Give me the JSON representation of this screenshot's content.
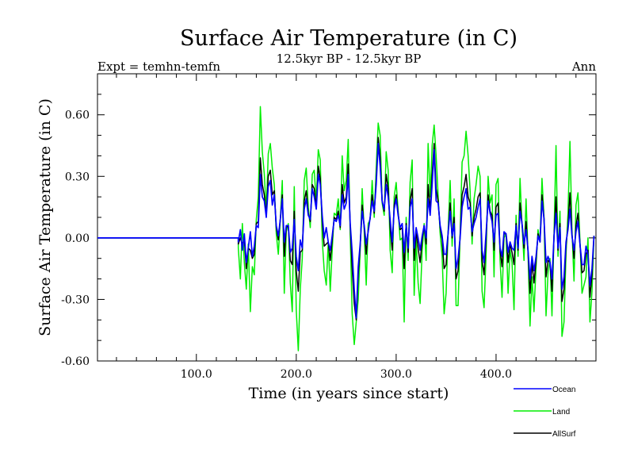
{
  "chart_data": {
    "type": "line",
    "title": "Surface Air Temperature (in C)",
    "subtitle_left": "Expt = temhn-temfn",
    "subtitle_center": "12.5kyr BP - 12.5kyr BP",
    "subtitle_right": "Ann",
    "xlabel": "Time (in years since start)",
    "ylabel": "Surface Air Temperature (in C)",
    "xlim": [
      1,
      500
    ],
    "ylim": [
      -0.6,
      0.8
    ],
    "x_ticks": [
      100,
      200,
      300,
      400
    ],
    "x_tick_labels": [
      "100.0",
      "200.0",
      "300.0",
      "400.0"
    ],
    "y_ticks": [
      -0.6,
      -0.3,
      0.0,
      0.3,
      0.6
    ],
    "y_tick_labels": [
      "-0.60",
      "-0.30",
      "0.00",
      "0.30",
      "0.60"
    ],
    "legend_position": "bottom-right",
    "flat_until": 142,
    "series": [
      {
        "name": "Ocean",
        "color": "#0000ff",
        "x_start": 142,
        "x_step": 2,
        "values": [
          -0.02,
          0.04,
          -0.06,
          0.02,
          -0.12,
          -0.05,
          0.03,
          -0.09,
          -0.04,
          0.06,
          0.05,
          0.31,
          0.2,
          0.18,
          0.1,
          0.25,
          0.28,
          0.16,
          0.21,
          0.06,
          0.01,
          0.09,
          0.19,
          -0.02,
          0.06,
          0.06,
          -0.07,
          -0.05,
          0.09,
          -0.09,
          -0.16,
          -0.01,
          -0.05,
          0.14,
          0.19,
          0.11,
          0.09,
          0.24,
          0.2,
          0.14,
          0.31,
          0.26,
          0.11,
          0.0,
          0.05,
          -0.02,
          -0.06,
          0.01,
          0.09,
          0.08,
          0.11,
          0.06,
          0.21,
          0.14,
          0.17,
          0.31,
          0.07,
          -0.07,
          -0.25,
          -0.39,
          -0.14,
          -0.03,
          0.13,
          0.06,
          -0.03,
          0.03,
          0.1,
          0.18,
          0.13,
          0.26,
          0.46,
          0.35,
          0.18,
          0.14,
          0.26,
          0.2,
          0.09,
          -0.02,
          0.14,
          0.19,
          0.11,
          0.05,
          0.07,
          -0.07,
          0.06,
          -0.05,
          0.15,
          0.19,
          -0.05,
          0.05,
          0.0,
          -0.06,
          0.01,
          0.06,
          0.0,
          0.19,
          0.11,
          0.26,
          0.43,
          0.18,
          0.17,
          0.06,
          0.01,
          -0.08,
          -0.08,
          0.02,
          0.13,
          0.01,
          0.07,
          -0.15,
          -0.1,
          0.0,
          0.15,
          0.2,
          0.24,
          0.14,
          0.15,
          0.03,
          0.07,
          0.1,
          0.15,
          0.19,
          -0.06,
          -0.12,
          0.02,
          0.18,
          0.12,
          0.08,
          -0.02,
          0.11,
          0.12,
          -0.05,
          -0.09,
          0.03,
          0.02,
          -0.07,
          -0.02,
          -0.05,
          -0.06,
          0.06,
          -0.05,
          0.13,
          0.07,
          -0.03,
          0.04,
          -0.06,
          -0.2,
          -0.09,
          -0.16,
          -0.09,
          0.01,
          -0.02,
          0.18,
          0.09,
          -0.12,
          -0.09,
          -0.12,
          -0.2,
          0.01,
          0.12,
          -0.05,
          0.05,
          -0.25,
          -0.19,
          -0.02,
          0.04,
          0.14,
          0.01,
          -0.06,
          0.03,
          0.08,
          -0.03,
          -0.13,
          -0.13,
          -0.04,
          -0.08,
          -0.23,
          -0.15,
          0.01
        ]
      },
      {
        "name": "Land",
        "color": "#00ee00",
        "x_start": 142,
        "x_step": 2,
        "values": [
          -0.05,
          -0.2,
          0.07,
          -0.12,
          -0.25,
          -0.03,
          -0.36,
          -0.14,
          -0.18,
          0.09,
          0.2,
          0.64,
          0.42,
          0.31,
          0.13,
          0.41,
          0.46,
          0.34,
          0.26,
          0.02,
          -0.08,
          0.09,
          0.28,
          -0.27,
          0.03,
          0.07,
          -0.22,
          -0.36,
          0.25,
          -0.35,
          -0.55,
          -0.25,
          -0.1,
          0.28,
          0.34,
          0.15,
          0.05,
          0.31,
          0.33,
          0.17,
          0.43,
          0.38,
          -0.01,
          -0.16,
          -0.23,
          -0.02,
          -0.26,
          -0.06,
          0.12,
          0.11,
          0.19,
          0.04,
          0.4,
          0.23,
          0.28,
          0.48,
          0.02,
          -0.37,
          -0.52,
          -0.41,
          -0.3,
          -0.06,
          0.24,
          0.03,
          -0.23,
          0.07,
          0.09,
          0.28,
          0.1,
          0.34,
          0.56,
          0.5,
          0.17,
          0.11,
          0.42,
          0.33,
          -0.06,
          -0.17,
          0.2,
          0.27,
          0.13,
          -0.01,
          0.0,
          -0.41,
          0.1,
          -0.11,
          0.27,
          0.38,
          -0.28,
          -0.01,
          -0.22,
          -0.32,
          -0.06,
          0.07,
          -0.11,
          0.46,
          0.2,
          0.45,
          0.55,
          0.4,
          0.21,
          0.02,
          -0.09,
          -0.37,
          -0.27,
          0.03,
          0.28,
          -0.04,
          0.19,
          -0.33,
          -0.33,
          0.02,
          0.37,
          0.4,
          0.52,
          0.4,
          0.23,
          -0.03,
          0.19,
          0.26,
          0.35,
          0.3,
          -0.26,
          -0.34,
          -0.09,
          0.3,
          0.17,
          0.21,
          -0.19,
          0.26,
          0.29,
          -0.11,
          -0.29,
          0.0,
          0.02,
          -0.27,
          -0.06,
          -0.12,
          -0.35,
          0.11,
          -0.09,
          0.29,
          0.06,
          -0.11,
          0.19,
          -0.08,
          -0.43,
          -0.19,
          -0.36,
          -0.14,
          0.04,
          -0.02,
          0.29,
          0.1,
          -0.38,
          -0.17,
          -0.1,
          -0.38,
          0.02,
          0.45,
          -0.09,
          0.13,
          -0.48,
          -0.41,
          -0.08,
          0.12,
          0.47,
          0.04,
          -0.21,
          0.16,
          0.22,
          -0.01,
          -0.27,
          -0.23,
          -0.19,
          0.0,
          -0.41,
          -0.26,
          0.01
        ]
      },
      {
        "name": "AllSurf",
        "color": "#000000",
        "x_start": 142,
        "x_step": 2,
        "values": [
          -0.03,
          0.0,
          -0.03,
          -0.01,
          -0.15,
          -0.05,
          -0.06,
          -0.1,
          -0.08,
          0.07,
          0.08,
          0.39,
          0.26,
          0.21,
          0.11,
          0.3,
          0.33,
          0.21,
          0.23,
          0.05,
          -0.01,
          0.09,
          0.21,
          -0.09,
          0.05,
          0.06,
          -0.11,
          -0.13,
          0.13,
          -0.16,
          -0.26,
          -0.07,
          -0.06,
          0.18,
          0.23,
          0.12,
          0.08,
          0.26,
          0.24,
          0.15,
          0.35,
          0.29,
          0.08,
          -0.04,
          -0.03,
          -0.02,
          -0.11,
          -0.01,
          0.1,
          0.09,
          0.13,
          0.05,
          0.26,
          0.17,
          0.2,
          0.36,
          0.06,
          -0.15,
          -0.32,
          -0.4,
          -0.18,
          -0.04,
          0.16,
          0.05,
          -0.08,
          0.04,
          0.1,
          0.21,
          0.12,
          0.28,
          0.49,
          0.39,
          0.18,
          0.13,
          0.31,
          0.24,
          0.05,
          -0.06,
          0.16,
          0.21,
          0.12,
          0.04,
          0.05,
          -0.15,
          0.07,
          -0.07,
          0.18,
          0.24,
          -0.11,
          0.03,
          -0.05,
          -0.12,
          -0.01,
          0.06,
          -0.03,
          0.26,
          0.13,
          0.31,
          0.46,
          0.24,
          0.18,
          0.05,
          -0.01,
          -0.15,
          -0.13,
          0.02,
          0.17,
          0.0,
          0.1,
          -0.2,
          -0.16,
          0.01,
          0.21,
          0.25,
          0.31,
          0.2,
          0.17,
          0.01,
          0.1,
          0.14,
          0.2,
          0.22,
          -0.11,
          -0.18,
          -0.01,
          0.21,
          0.13,
          0.11,
          -0.06,
          0.15,
          0.17,
          -0.06,
          -0.14,
          0.02,
          0.02,
          -0.12,
          -0.03,
          -0.07,
          -0.13,
          0.07,
          -0.06,
          0.17,
          0.07,
          -0.05,
          0.08,
          -0.07,
          -0.27,
          -0.12,
          -0.22,
          -0.11,
          0.02,
          -0.02,
          0.21,
          0.09,
          -0.19,
          -0.11,
          -0.12,
          -0.26,
          0.01,
          0.2,
          -0.06,
          0.07,
          -0.31,
          -0.25,
          -0.04,
          0.06,
          0.22,
          0.02,
          -0.1,
          0.06,
          0.12,
          -0.03,
          -0.17,
          -0.16,
          -0.08,
          -0.06,
          -0.29,
          -0.18,
          0.01
        ]
      }
    ]
  }
}
